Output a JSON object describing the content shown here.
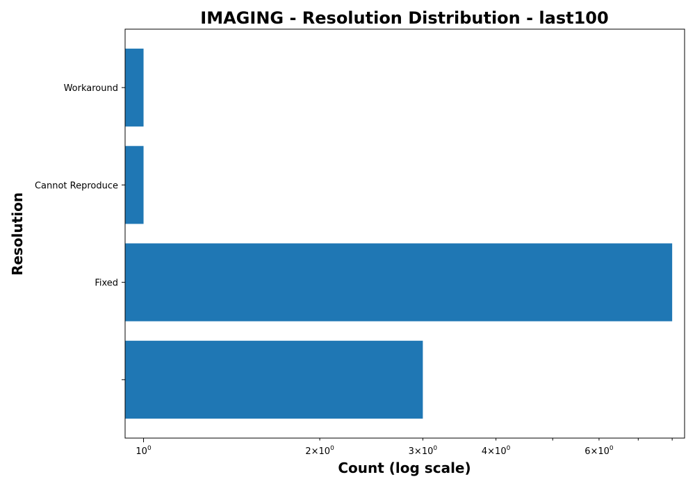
{
  "chart_data": {
    "type": "bar",
    "orientation": "horizontal",
    "title": "IMAGING - Resolution Distribution - last100",
    "xlabel": "Count (log scale)",
    "ylabel": "Resolution",
    "xscale": "log",
    "categories": [
      "",
      "Fixed",
      "Cannot Reproduce",
      "Workaround"
    ],
    "values": [
      3,
      8,
      1,
      1
    ],
    "xlim": [
      0.93,
      8.4
    ],
    "x_major_ticks": [
      1
    ],
    "x_minor_ticks": [
      2,
      3,
      4,
      6
    ],
    "x_tick_labels": [
      "10^0",
      "2×10^0",
      "3×10^0",
      "4×10^0",
      "6×10^0"
    ],
    "bar_color": "#1f77b4",
    "grid": false,
    "legend": "none"
  }
}
